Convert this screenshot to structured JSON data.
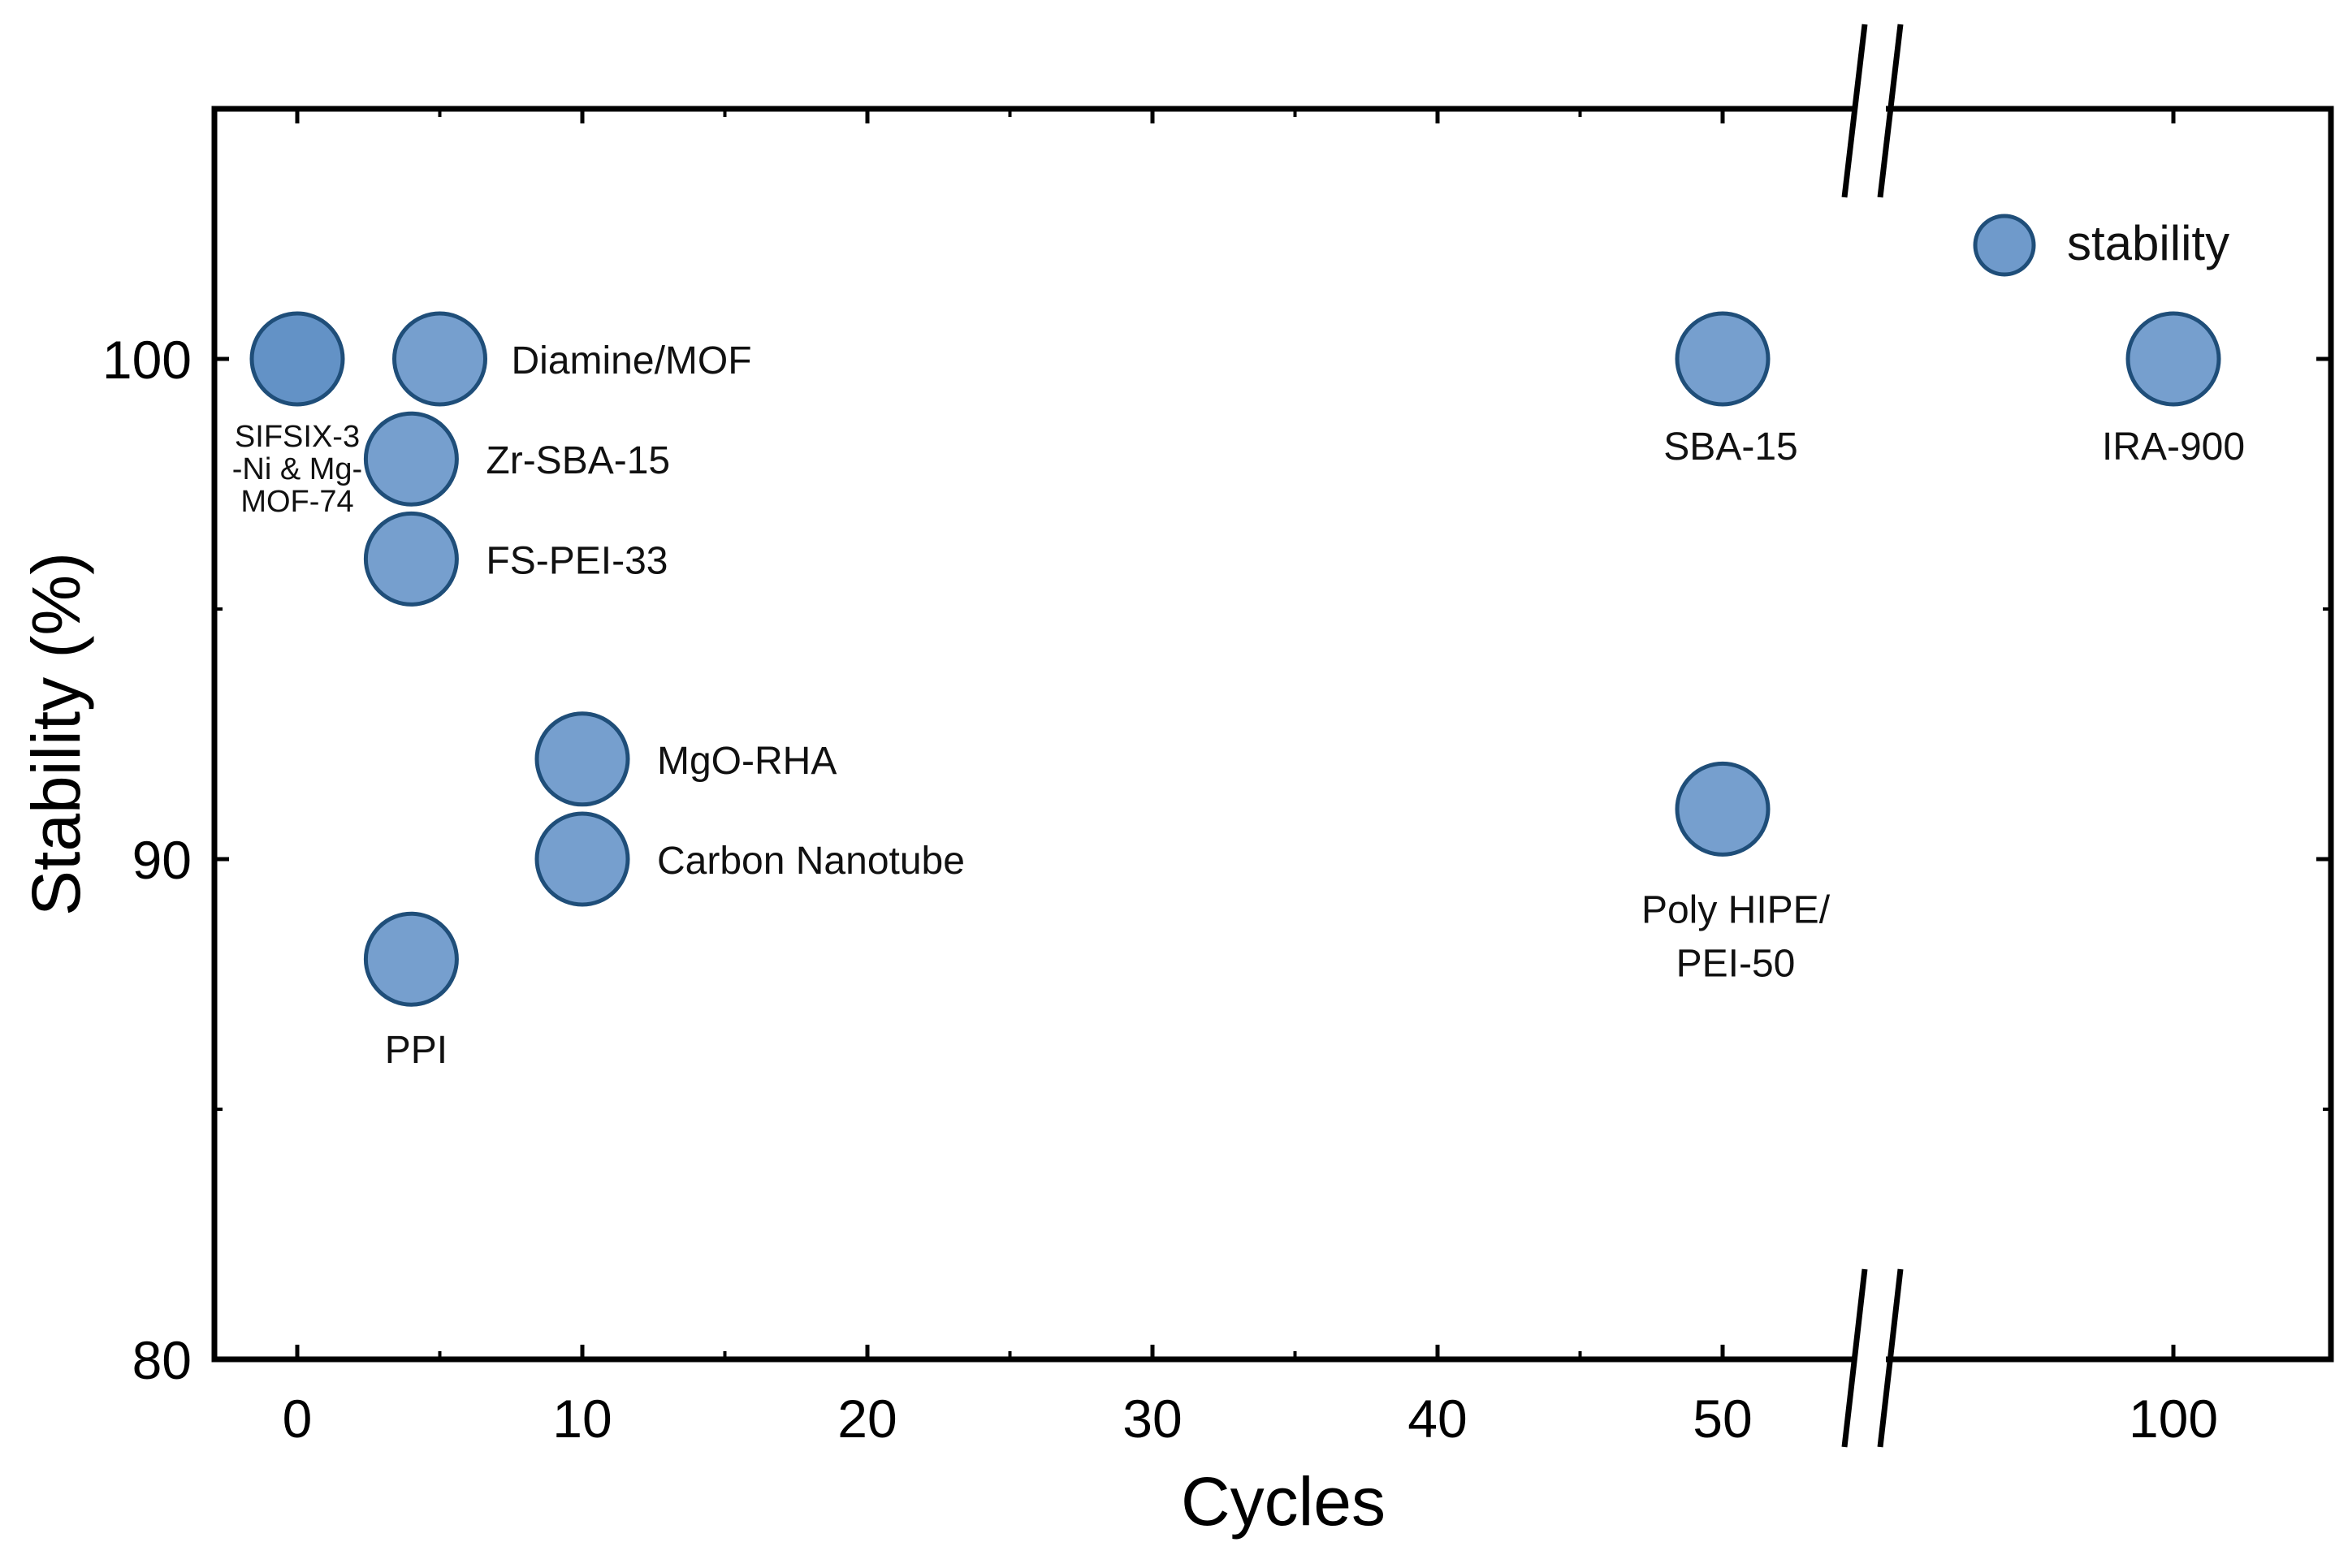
{
  "chart_data": {
    "type": "scatter",
    "xlabel": "Cycles",
    "ylabel": "Stability (%)",
    "x_ticks": [
      "0",
      "10",
      "20",
      "30",
      "40",
      "50",
      "100"
    ],
    "y_ticks": [
      "80",
      "90",
      "100"
    ],
    "ylim": [
      80,
      105
    ],
    "x_axis_break": "between 50 and 100",
    "legend": {
      "label": "stability",
      "position": "top-right"
    },
    "series": [
      {
        "name": "stability",
        "color": "#6f9acb",
        "points": [
          {
            "x": 0,
            "y": 100,
            "label": [
              "SIFSIX-3",
              "-Ni & Mg-",
              "MOF-74"
            ]
          },
          {
            "x": 5,
            "y": 100,
            "label": [
              "Diamine/MOF"
            ]
          },
          {
            "x": 4,
            "y": 98,
            "label": [
              "Zr-SBA-15"
            ]
          },
          {
            "x": 4,
            "y": 96,
            "label": [
              "FS-PEI-33"
            ]
          },
          {
            "x": 10,
            "y": 92,
            "label": [
              "MgO-RHA"
            ]
          },
          {
            "x": 10,
            "y": 90,
            "label": [
              "Carbon Nanotube"
            ]
          },
          {
            "x": 4,
            "y": 88,
            "label": [
              "PPI"
            ]
          },
          {
            "x": 50,
            "y": 100,
            "label": [
              "SBA-15"
            ]
          },
          {
            "x": 50,
            "y": 91,
            "label": [
              "Poly HIPE/",
              "PEI-50"
            ]
          },
          {
            "x": 100,
            "y": 100,
            "label": [
              "IRA-900"
            ]
          }
        ]
      }
    ]
  }
}
